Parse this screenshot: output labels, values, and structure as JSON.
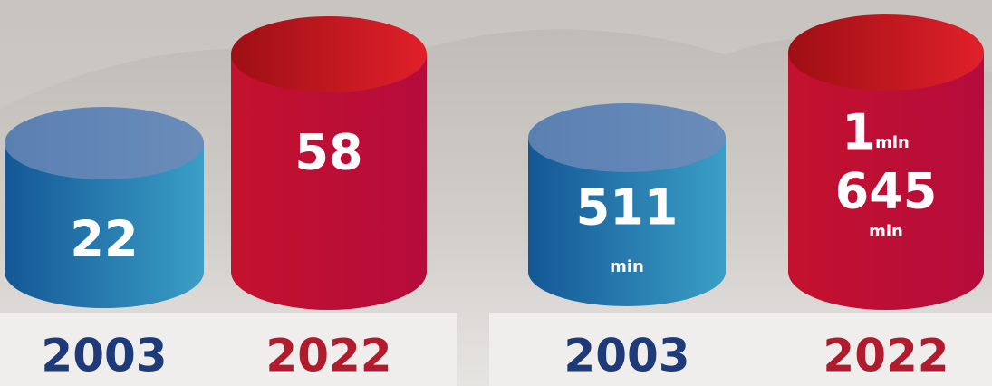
{
  "panels": [
    {
      "cylinders": [
        {
          "year": "2003",
          "value": "22"
        },
        {
          "year": "2022",
          "value": "58"
        }
      ]
    },
    {
      "cylinders": [
        {
          "year": "2003",
          "value": "511",
          "unit": "min"
        },
        {
          "year": "2022",
          "value": "1",
          "unit": "mln",
          "value2": "645",
          "unit2": "min"
        }
      ]
    }
  ]
}
